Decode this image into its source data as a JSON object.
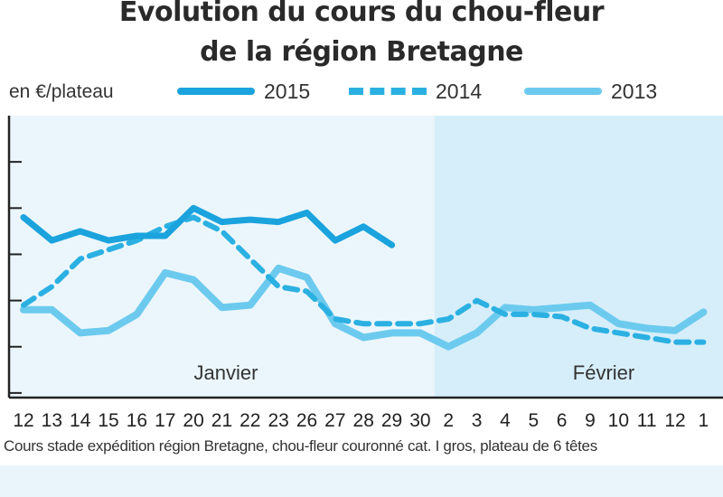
{
  "title": {
    "line1": "Evolution du cours du chou-fleur",
    "line2": "de la région Bretagne"
  },
  "unit_label": "en €/plateau",
  "footnote": "Cours stade expédition région Bretagne, chou-fleur couronné cat. I gros, plateau de 6 têtes",
  "colors": {
    "s2015": "#1aa3dd",
    "s2014": "#2bb0e2",
    "s2013": "#6ccaee",
    "bg_jan": "#ebf6fc",
    "bg_feb": "#d6eefa",
    "frame": "#222222"
  },
  "chart_data": {
    "type": "line",
    "ylabel": "en €/plateau",
    "grid": false,
    "legend_position": "top",
    "months": [
      "Janvier",
      "Février"
    ],
    "x": [
      "12",
      "13",
      "14",
      "15",
      "16",
      "17",
      "20",
      "21",
      "22",
      "23",
      "26",
      "27",
      "28",
      "29",
      "30",
      "2",
      "3",
      "4",
      "5",
      "6",
      "9",
      "10",
      "11",
      "12",
      "1"
    ],
    "series": [
      {
        "name": "2015",
        "style": "solid",
        "values": [
          7.8,
          7.3,
          7.5,
          7.3,
          7.4,
          7.4,
          8.0,
          7.7,
          7.75,
          7.7,
          7.9,
          7.3,
          7.6,
          7.2,
          null,
          null,
          null,
          null,
          null,
          null,
          null,
          null,
          null,
          null,
          null
        ]
      },
      {
        "name": "2014",
        "style": "dashed",
        "values": [
          5.9,
          6.3,
          6.9,
          7.1,
          7.3,
          7.6,
          7.8,
          7.5,
          6.9,
          6.3,
          6.2,
          5.6,
          5.5,
          5.5,
          5.5,
          5.6,
          6.0,
          5.7,
          5.7,
          5.65,
          5.4,
          5.3,
          5.2,
          5.1,
          5.1
        ]
      },
      {
        "name": "2013",
        "style": "solid-light",
        "values": [
          5.8,
          5.8,
          5.3,
          5.35,
          5.7,
          6.6,
          6.45,
          5.85,
          5.9,
          6.7,
          6.5,
          5.5,
          5.2,
          5.3,
          5.3,
          5.0,
          5.3,
          5.85,
          5.8,
          5.85,
          5.9,
          5.5,
          5.4,
          5.35,
          5.75
        ]
      }
    ],
    "ylim": [
      3.9,
      10.0
    ],
    "yticks": [
      4,
      5,
      6,
      7,
      8,
      9
    ]
  }
}
